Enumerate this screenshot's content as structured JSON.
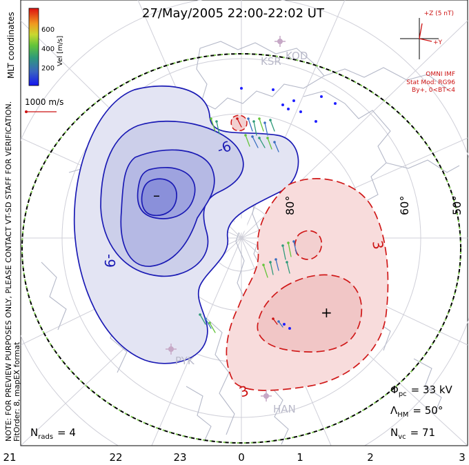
{
  "title": "27/May/2005 22:00-22:02 UT",
  "colorbar": {
    "axis_label": "Vel [m/s]",
    "ticks": [
      "600",
      "400",
      "200"
    ],
    "colors": [
      "#2020ff",
      "#3a6fc0",
      "#2f9a7a",
      "#63c43a",
      "#b8d630",
      "#f0a020",
      "#e84018",
      "#cc0000"
    ]
  },
  "coordinates_label": "MLT coordinates",
  "vector_scale_label": "1000 m/s",
  "imf": {
    "z_label": "+Z (5 nT)",
    "y_label": "+Y",
    "source": "OMNI IMF",
    "model": "Stat Mod: RG96",
    "bin": "By+, 0<BT<4"
  },
  "stations": [
    "KSR",
    "KOD",
    "PYK",
    "HAN"
  ],
  "latitude_labels": [
    "80°",
    "60°",
    "50°"
  ],
  "contour_labels": [
    "-9",
    "-6",
    "3"
  ],
  "potential_markers": [
    "–",
    "+"
  ],
  "notes": {
    "preview": "NOTE: FOR PREVIEW PURPOSES ONLY, PLEASE CONTACT VT-SD STAFF FOR VERIFICATION.",
    "fit": "FitOrder: 8,  mapEX format"
  },
  "stats": {
    "phi_symbol": "Φ",
    "phi_sub": "pc",
    "phi_value": "= 33 kV",
    "lambda_symbol": "Λ",
    "lambda_sub": "HM",
    "lambda_value": "= 50°",
    "nvc_symbol": "N",
    "nvc_sub": "vc",
    "nvc_value": "= 71",
    "nrads_symbol": "N",
    "nrads_sub": "rads",
    "nrads_value": "= 4"
  },
  "mlt_axis": [
    "21",
    "22",
    "23",
    "0",
    "1",
    "2",
    "3"
  ],
  "style": {
    "negative_cell_color": "#1a1ab4",
    "positive_cell_color": "#d01818",
    "hmb_color": "#7ec850"
  }
}
